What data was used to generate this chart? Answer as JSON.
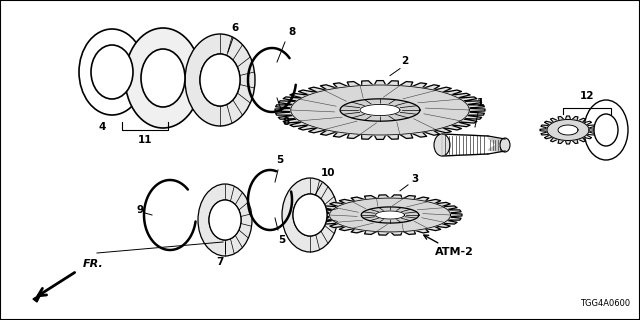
{
  "bg_color": "#ffffff",
  "line_color": "#000000",
  "text_color": "#000000",
  "diagram_code": "TGG4A0600",
  "atm_label": "ATM-2",
  "fr_label": "FR."
}
